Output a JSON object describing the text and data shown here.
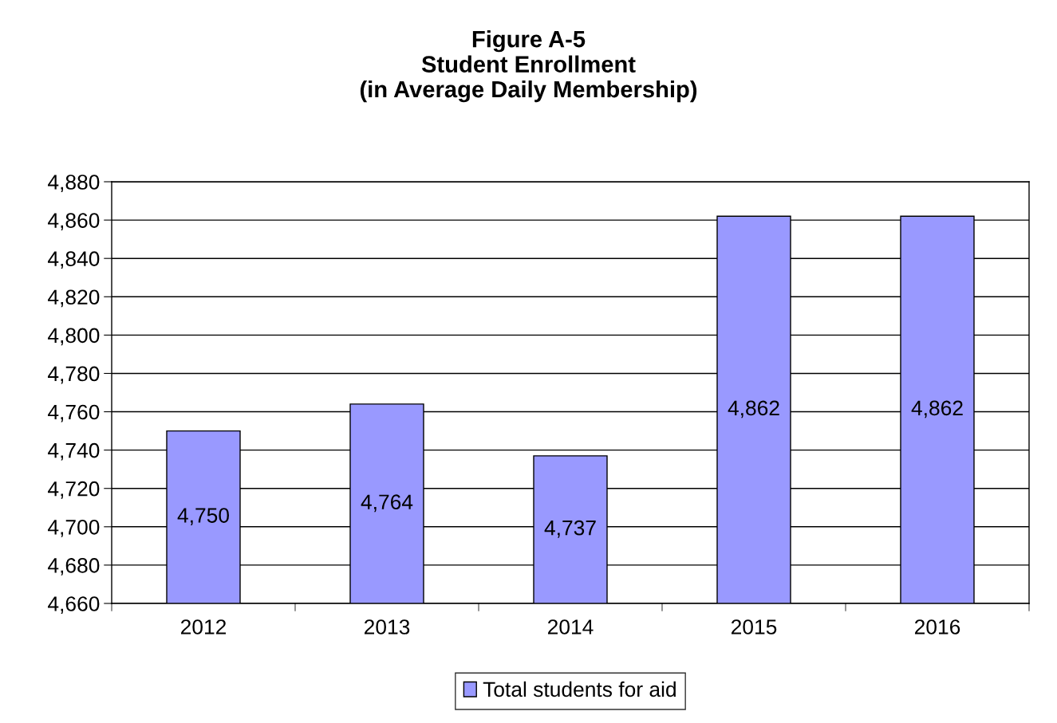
{
  "chart_data": {
    "type": "bar",
    "title": "Figure A-5\nStudent Enrollment\n(in Average Daily Membership)",
    "categories": [
      "2012",
      "2013",
      "2014",
      "2015",
      "2016"
    ],
    "series": [
      {
        "name": "Total students for aid",
        "color": "#9999ff",
        "values": [
          4750,
          4764,
          4737,
          4862,
          4862
        ]
      }
    ],
    "ylim": [
      4660,
      4880
    ],
    "yticks": [
      {
        "value": 4660,
        "label": "4,660"
      },
      {
        "value": 4680,
        "label": "4,680"
      },
      {
        "value": 4700,
        "label": "4,700"
      },
      {
        "value": 4720,
        "label": "4,720"
      },
      {
        "value": 4740,
        "label": "4,740"
      },
      {
        "value": 4760,
        "label": "4,760"
      },
      {
        "value": 4780,
        "label": "4,780"
      },
      {
        "value": 4800,
        "label": "4,800"
      },
      {
        "value": 4820,
        "label": "4,820"
      },
      {
        "value": 4840,
        "label": "4,840"
      },
      {
        "value": 4860,
        "label": "4,860"
      },
      {
        "value": 4880,
        "label": "4,880"
      }
    ],
    "value_labels": [
      "4,750",
      "4,764",
      "4,737",
      "4,862",
      "4,862"
    ],
    "grid": "y",
    "legend": "bottom"
  }
}
